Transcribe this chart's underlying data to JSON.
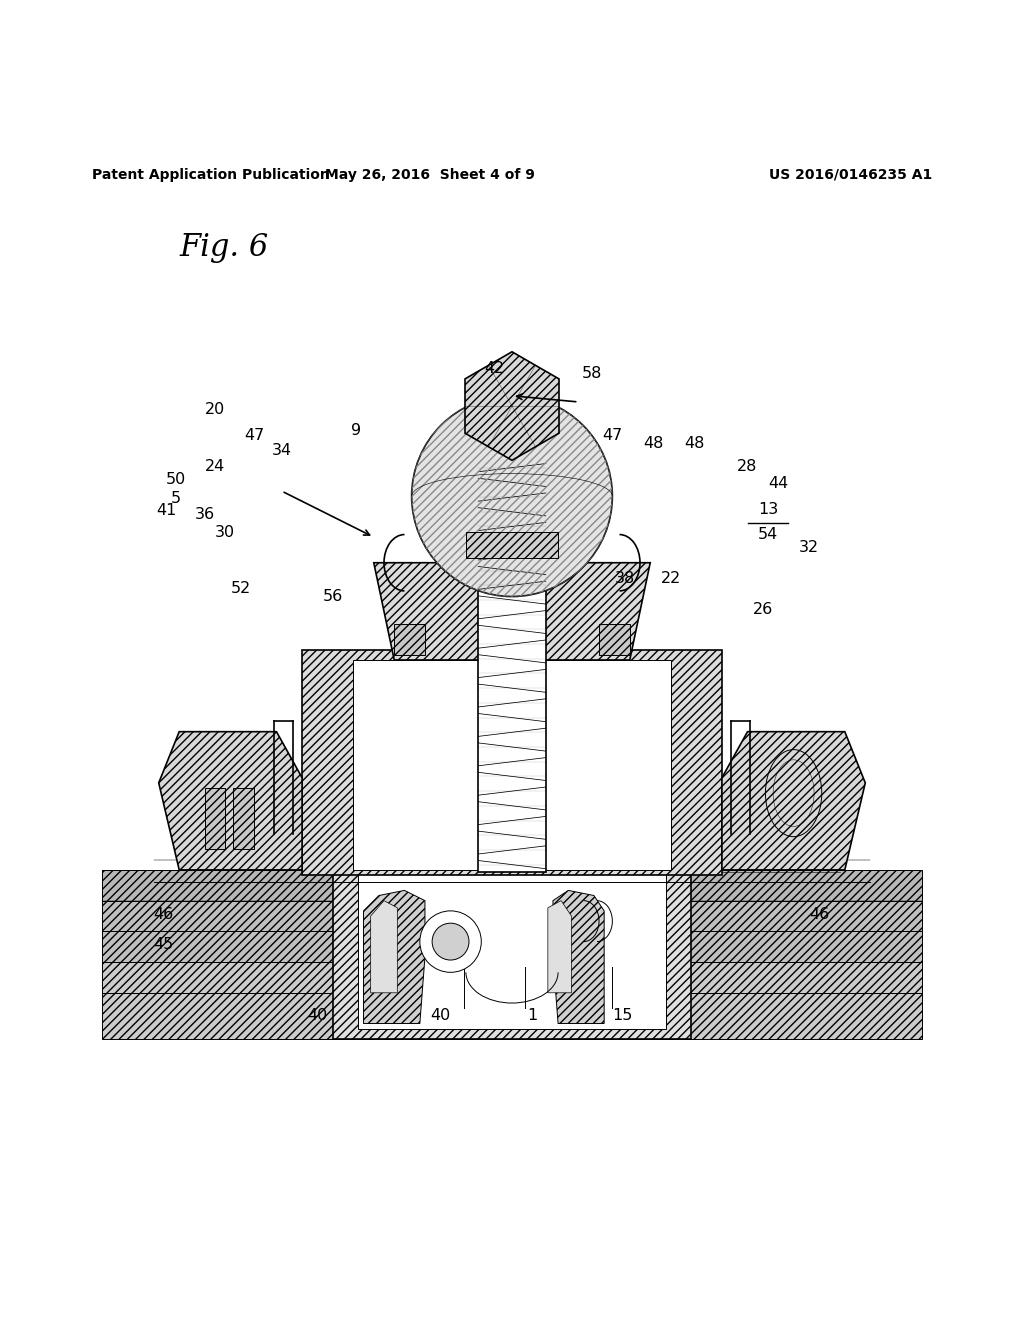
{
  "header_left": "Patent Application Publication",
  "header_center": "May 26, 2016  Sheet 4 of 9",
  "header_right": "US 2016/0146235 A1",
  "figure_label": "Fig. 6",
  "background_color": "#ffffff",
  "line_color": "#000000",
  "hatch_color": "#000000",
  "label_color": "#000000",
  "lw_main": 1.2,
  "lw_thin": 0.7,
  "label_fs": 11.5,
  "italic_fs": 22,
  "header_fs": 10
}
